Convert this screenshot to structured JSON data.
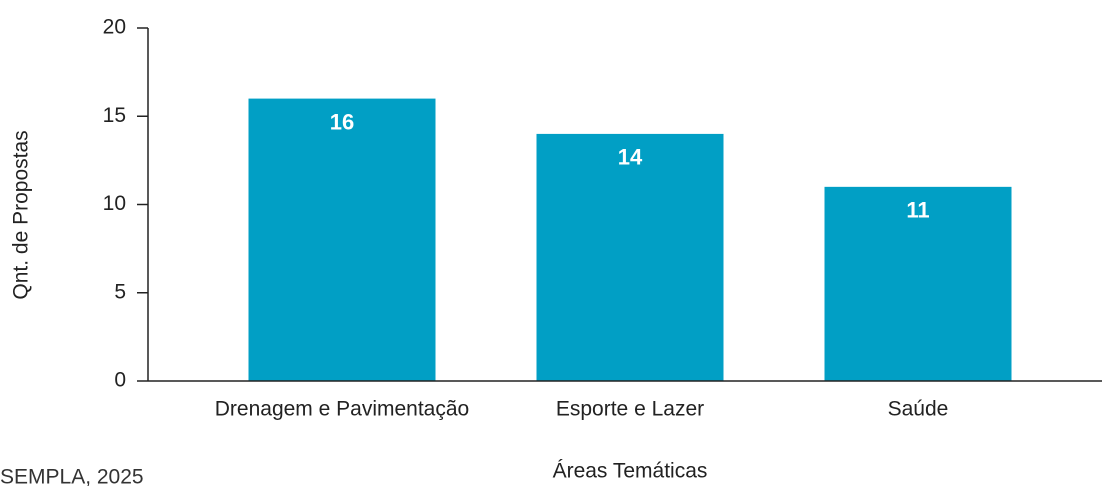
{
  "chart_data": {
    "type": "bar",
    "categories": [
      "Drenagem e Pavimentação",
      "Esporte e Lazer",
      "Saúde"
    ],
    "values": [
      16,
      14,
      11
    ],
    "color": "#019fc5",
    "ylim": [
      0,
      20
    ],
    "yticks": [
      0,
      5,
      10,
      15,
      20
    ],
    "x_label": "Áreas Temáticas",
    "y_label": "Qnt. de Propostas",
    "source": "SEMPLA, 2025"
  }
}
